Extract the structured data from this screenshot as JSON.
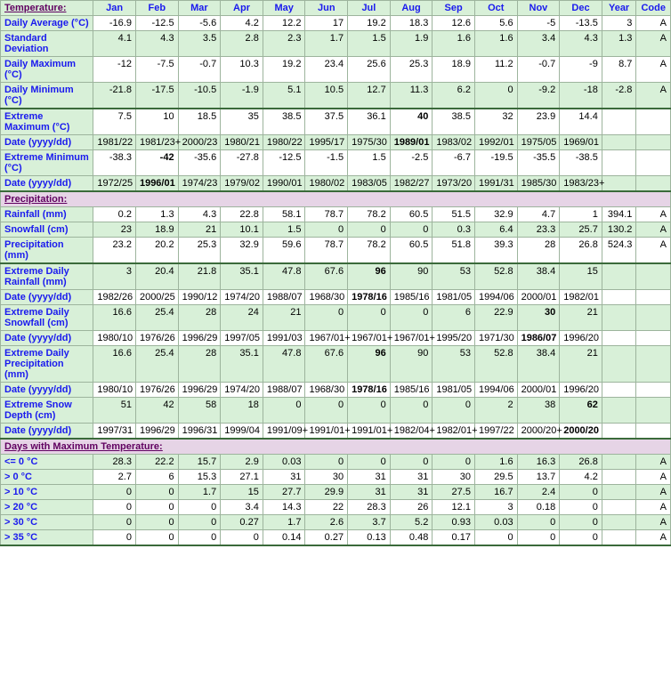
{
  "columns": [
    "Jan",
    "Feb",
    "Mar",
    "Apr",
    "May",
    "Jun",
    "Jul",
    "Aug",
    "Sep",
    "Oct",
    "Nov",
    "Dec",
    "Year",
    "Code"
  ],
  "sections": [
    {
      "title": "Temperature:",
      "rows": [
        {
          "label": "Daily Average (°C)",
          "alt": false,
          "bold": [],
          "vals": [
            "-16.9",
            "-12.5",
            "-5.6",
            "4.2",
            "12.2",
            "17",
            "19.2",
            "18.3",
            "12.6",
            "5.6",
            "-5",
            "-13.5",
            "3",
            "A"
          ]
        },
        {
          "label": "Standard Deviation",
          "alt": true,
          "bold": [],
          "vals": [
            "4.1",
            "4.3",
            "3.5",
            "2.8",
            "2.3",
            "1.7",
            "1.5",
            "1.9",
            "1.6",
            "1.6",
            "3.4",
            "4.3",
            "1.3",
            "A"
          ]
        },
        {
          "label": "Daily Maximum (°C)",
          "alt": false,
          "bold": [],
          "vals": [
            "-12",
            "-7.5",
            "-0.7",
            "10.3",
            "19.2",
            "23.4",
            "25.6",
            "25.3",
            "18.9",
            "11.2",
            "-0.7",
            "-9",
            "8.7",
            "A"
          ]
        },
        {
          "label": "Daily Minimum (°C)",
          "alt": true,
          "bold": [],
          "vals": [
            "-21.8",
            "-17.5",
            "-10.5",
            "-1.9",
            "5.1",
            "10.5",
            "12.7",
            "11.3",
            "6.2",
            "0",
            "-9.2",
            "-18",
            "-2.8",
            "A"
          ],
          "thick": true
        },
        {
          "label": "Extreme Maximum (°C)",
          "alt": false,
          "bold": [
            7
          ],
          "vals": [
            "7.5",
            "10",
            "18.5",
            "35",
            "38.5",
            "37.5",
            "36.1",
            "40",
            "38.5",
            "32",
            "23.9",
            "14.4",
            "",
            ""
          ]
        },
        {
          "label": "Date (yyyy/dd)",
          "alt": true,
          "bold": [
            7
          ],
          "vals": [
            "1981/22",
            "1981/23+",
            "2000/23",
            "1980/21",
            "1980/22",
            "1995/17",
            "1975/30",
            "1989/01",
            "1983/02",
            "1992/01",
            "1975/05",
            "1969/01",
            "",
            ""
          ]
        },
        {
          "label": "Extreme Minimum (°C)",
          "alt": false,
          "bold": [
            1
          ],
          "vals": [
            "-38.3",
            "-42",
            "-35.6",
            "-27.8",
            "-12.5",
            "-1.5",
            "1.5",
            "-2.5",
            "-6.7",
            "-19.5",
            "-35.5",
            "-38.5",
            "",
            ""
          ]
        },
        {
          "label": "Date (yyyy/dd)",
          "alt": true,
          "bold": [
            1
          ],
          "vals": [
            "1972/25",
            "1996/01",
            "1974/23",
            "1979/02",
            "1990/01",
            "1980/02",
            "1983/05",
            "1982/27",
            "1973/20",
            "1991/31",
            "1985/30",
            "1983/23+",
            "",
            ""
          ],
          "thick": true
        }
      ]
    },
    {
      "title": "Precipitation:",
      "rows": [
        {
          "label": "Rainfall (mm)",
          "alt": false,
          "bold": [],
          "vals": [
            "0.2",
            "1.3",
            "4.3",
            "22.8",
            "58.1",
            "78.7",
            "78.2",
            "60.5",
            "51.5",
            "32.9",
            "4.7",
            "1",
            "394.1",
            "A"
          ]
        },
        {
          "label": "Snowfall (cm)",
          "alt": true,
          "bold": [],
          "vals": [
            "23",
            "18.9",
            "21",
            "10.1",
            "1.5",
            "0",
            "0",
            "0",
            "0.3",
            "6.4",
            "23.3",
            "25.7",
            "130.2",
            "A"
          ]
        },
        {
          "label": "Precipitation (mm)",
          "alt": false,
          "bold": [],
          "vals": [
            "23.2",
            "20.2",
            "25.3",
            "32.9",
            "59.6",
            "78.7",
            "78.2",
            "60.5",
            "51.8",
            "39.3",
            "28",
            "26.8",
            "524.3",
            "A"
          ],
          "thick": true
        },
        {
          "label": "Extreme Daily Rainfall (mm)",
          "alt": true,
          "bold": [
            6
          ],
          "vals": [
            "3",
            "20.4",
            "21.8",
            "35.1",
            "47.8",
            "67.6",
            "96",
            "90",
            "53",
            "52.8",
            "38.4",
            "15",
            "",
            ""
          ]
        },
        {
          "label": "Date (yyyy/dd)",
          "alt": false,
          "bold": [
            6
          ],
          "vals": [
            "1982/26",
            "2000/25",
            "1990/12",
            "1974/20",
            "1988/07",
            "1968/30",
            "1978/16",
            "1985/16",
            "1981/05",
            "1994/06",
            "2000/01",
            "1982/01",
            "",
            ""
          ]
        },
        {
          "label": "Extreme Daily Snowfall (cm)",
          "alt": true,
          "bold": [
            10
          ],
          "vals": [
            "16.6",
            "25.4",
            "28",
            "24",
            "21",
            "0",
            "0",
            "0",
            "6",
            "22.9",
            "30",
            "21",
            "",
            ""
          ]
        },
        {
          "label": "Date (yyyy/dd)",
          "alt": false,
          "bold": [
            10
          ],
          "vals": [
            "1980/10",
            "1976/26",
            "1996/29",
            "1997/05",
            "1991/03",
            "1967/01+",
            "1967/01+",
            "1967/01+",
            "1995/20",
            "1971/30",
            "1986/07",
            "1996/20",
            "",
            ""
          ]
        },
        {
          "label": "Extreme Daily Precipitation (mm)",
          "alt": true,
          "bold": [
            6
          ],
          "vals": [
            "16.6",
            "25.4",
            "28",
            "35.1",
            "47.8",
            "67.6",
            "96",
            "90",
            "53",
            "52.8",
            "38.4",
            "21",
            "",
            ""
          ]
        },
        {
          "label": "Date (yyyy/dd)",
          "alt": false,
          "bold": [
            6
          ],
          "vals": [
            "1980/10",
            "1976/26",
            "1996/29",
            "1974/20",
            "1988/07",
            "1968/30",
            "1978/16",
            "1985/16",
            "1981/05",
            "1994/06",
            "2000/01",
            "1996/20",
            "",
            ""
          ]
        },
        {
          "label": "Extreme Snow Depth (cm)",
          "alt": true,
          "bold": [
            11
          ],
          "vals": [
            "51",
            "42",
            "58",
            "18",
            "0",
            "0",
            "0",
            "0",
            "0",
            "2",
            "38",
            "62",
            "",
            ""
          ]
        },
        {
          "label": "Date (yyyy/dd)",
          "alt": false,
          "bold": [
            11
          ],
          "vals": [
            "1997/31",
            "1996/29",
            "1996/31",
            "1999/04",
            "1991/09+",
            "1991/01+",
            "1991/01+",
            "1982/04+",
            "1982/01+",
            "1997/22",
            "2000/20+",
            "2000/20",
            "",
            ""
          ],
          "thick": true
        }
      ]
    },
    {
      "title": "Days with Maximum Temperature:",
      "rows": [
        {
          "label": "<= 0 °C",
          "alt": true,
          "bold": [],
          "vals": [
            "28.3",
            "22.2",
            "15.7",
            "2.9",
            "0.03",
            "0",
            "0",
            "0",
            "0",
            "1.6",
            "16.3",
            "26.8",
            "",
            "A"
          ]
        },
        {
          "label": "> 0 °C",
          "alt": false,
          "bold": [],
          "vals": [
            "2.7",
            "6",
            "15.3",
            "27.1",
            "31",
            "30",
            "31",
            "31",
            "30",
            "29.5",
            "13.7",
            "4.2",
            "",
            "A"
          ]
        },
        {
          "label": "> 10 °C",
          "alt": true,
          "bold": [],
          "vals": [
            "0",
            "0",
            "1.7",
            "15",
            "27.7",
            "29.9",
            "31",
            "31",
            "27.5",
            "16.7",
            "2.4",
            "0",
            "",
            "A"
          ]
        },
        {
          "label": "> 20 °C",
          "alt": false,
          "bold": [],
          "vals": [
            "0",
            "0",
            "0",
            "3.4",
            "14.3",
            "22",
            "28.3",
            "26",
            "12.1",
            "3",
            "0.18",
            "0",
            "",
            "A"
          ]
        },
        {
          "label": "> 30 °C",
          "alt": true,
          "bold": [],
          "vals": [
            "0",
            "0",
            "0",
            "0.27",
            "1.7",
            "2.6",
            "3.7",
            "5.2",
            "0.93",
            "0.03",
            "0",
            "0",
            "",
            "A"
          ]
        },
        {
          "label": "> 35 °C",
          "alt": false,
          "bold": [],
          "vals": [
            "0",
            "0",
            "0",
            "0",
            "0.14",
            "0.27",
            "0.13",
            "0.48",
            "0.17",
            "0",
            "0",
            "0",
            "",
            "A"
          ],
          "thick": true
        }
      ]
    }
  ],
  "colors": {
    "header_bg": "#d8f0d8",
    "alt_bg": "#d8f0d8",
    "border": "#9db49d",
    "thick_border": "#3a6a3a",
    "link": "#1a1aee",
    "section_bg": "#e6d4e6",
    "section_fg": "#600060"
  }
}
